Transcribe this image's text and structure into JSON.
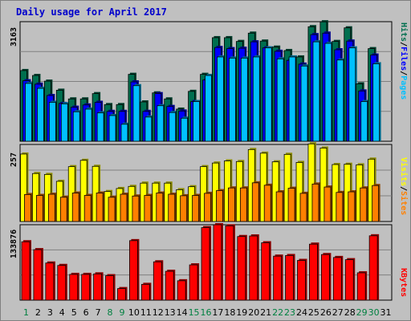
{
  "colors": {
    "background": "#c0c0c0",
    "plot_bg": "#c0c0c0",
    "hits": "#006f4f",
    "files": "#0000ff",
    "pages": "#00c0ff",
    "visits": "#ffff00",
    "sites": "#ff8000",
    "kbytes": "#ff0000",
    "title": "#0000cc",
    "weekend_label": "#008040",
    "weekday_label": "#000000"
  },
  "chart_data": [
    {
      "type": "bar",
      "title": "Daily usage for April 2017",
      "ylabel_max": "3163",
      "ylim": [
        0,
        3163
      ],
      "legend": [
        "Pages",
        "Files",
        "Hits"
      ],
      "categories": [
        "1",
        "2",
        "3",
        "4",
        "5",
        "6",
        "7",
        "8",
        "9",
        "10",
        "11",
        "12",
        "13",
        "14",
        "15",
        "16",
        "17",
        "18",
        "19",
        "20",
        "21",
        "22",
        "23",
        "24",
        "25",
        "26",
        "27",
        "28",
        "29",
        "30",
        "31"
      ],
      "weekend_days": [
        "1",
        "8",
        "9",
        "15",
        "16",
        "22",
        "23",
        "29",
        "30"
      ],
      "series": [
        {
          "name": "Hits",
          "values": [
            1870,
            1740,
            1590,
            1350,
            1120,
            1120,
            1260,
            970,
            970,
            1770,
            1040,
            1280,
            1120,
            850,
            1320,
            1770,
            2740,
            2740,
            2640,
            2860,
            2650,
            2490,
            2400,
            2230,
            3030,
            3160,
            2640,
            3000,
            1520,
            2450,
            0
          ]
        },
        {
          "name": "Files",
          "values": [
            1600,
            1510,
            1210,
            1000,
            900,
            960,
            1030,
            790,
            790,
            1570,
            790,
            1260,
            920,
            800,
            1050,
            1620,
            2480,
            2450,
            2460,
            2630,
            2470,
            2380,
            2140,
            2040,
            2820,
            2860,
            2420,
            2650,
            1330,
            2280,
            0
          ]
        },
        {
          "name": "Pages",
          "values": [
            1530,
            1400,
            1030,
            990,
            780,
            850,
            750,
            680,
            450,
            1470,
            640,
            940,
            760,
            610,
            1050,
            1740,
            2230,
            2200,
            2200,
            2230,
            2470,
            2180,
            2230,
            1990,
            2630,
            2590,
            2150,
            2470,
            1050,
            2050,
            0
          ]
        }
      ]
    },
    {
      "type": "bar",
      "ylabel_max": "257",
      "ylim": [
        0,
        257
      ],
      "legend": [
        "Sites",
        "Visits"
      ],
      "categories": [
        "1",
        "2",
        "3",
        "4",
        "5",
        "6",
        "7",
        "8",
        "9",
        "10",
        "11",
        "12",
        "13",
        "14",
        "15",
        "16",
        "17",
        "18",
        "19",
        "20",
        "21",
        "22",
        "23",
        "24",
        "25",
        "26",
        "27",
        "28",
        "29",
        "30",
        "31"
      ],
      "series": [
        {
          "name": "Visits",
          "values": [
            225,
            160,
            157,
            134,
            183,
            204,
            184,
            100,
            110,
            117,
            128,
            128,
            128,
            106,
            116,
            183,
            195,
            202,
            200,
            240,
            228,
            199,
            224,
            197,
            259,
            245,
            190,
            191,
            189,
            208,
            0
          ]
        },
        {
          "name": "Sites",
          "values": [
            90,
            87,
            91,
            81,
            95,
            87,
            95,
            81,
            91,
            85,
            87,
            95,
            91,
            86,
            87,
            94,
            103,
            112,
            112,
            129,
            121,
            99,
            111,
            94,
            125,
            115,
            97,
            99,
            112,
            120,
            0
          ]
        }
      ]
    },
    {
      "type": "bar",
      "ylabel_max": "133876",
      "ylim": [
        0,
        133876
      ],
      "legend": [
        "KBytes"
      ],
      "categories": [
        "1",
        "2",
        "3",
        "4",
        "5",
        "6",
        "7",
        "8",
        "9",
        "10",
        "11",
        "12",
        "13",
        "14",
        "15",
        "16",
        "17",
        "18",
        "19",
        "20",
        "21",
        "22",
        "23",
        "24",
        "25",
        "26",
        "27",
        "28",
        "29",
        "30",
        "31"
      ],
      "series": [
        {
          "name": "KBytes",
          "values": [
            103600,
            89600,
            65900,
            61600,
            45700,
            45700,
            46600,
            43400,
            20500,
            105600,
            28000,
            68000,
            51200,
            34400,
            62600,
            128700,
            133800,
            131900,
            112900,
            113900,
            101800,
            78100,
            79200,
            70500,
            99400,
            80900,
            75700,
            71800,
            48500,
            114200,
            0
          ]
        }
      ]
    }
  ]
}
